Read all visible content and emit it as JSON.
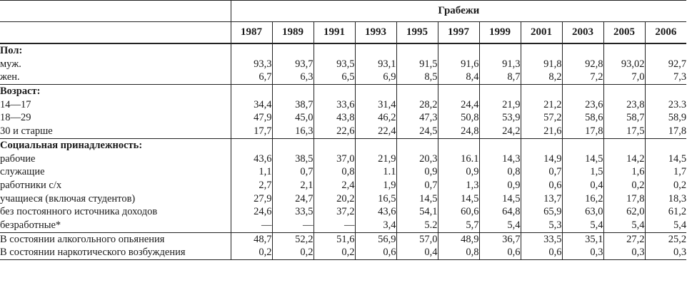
{
  "table": {
    "title": "Грабежи",
    "years": [
      "1987",
      "1989",
      "1991",
      "1993",
      "1995",
      "1997",
      "1999",
      "2001",
      "2003",
      "2005",
      "2006"
    ],
    "sections": [
      {
        "header": "Пол:",
        "rows": [
          {
            "label": "муж.",
            "values": [
              "93,3",
              "93,7",
              "93,5",
              "93,1",
              "91,5",
              "91,6",
              "91,3",
              "91,8",
              "92,8",
              "93,02",
              "92,7"
            ]
          },
          {
            "label": "жен.",
            "values": [
              "6,7",
              "6,3",
              "6,5",
              "6,9",
              "8,5",
              "8,4",
              "8,7",
              "8,2",
              "7,2",
              "7,0",
              "7,3"
            ]
          }
        ]
      },
      {
        "header": "Возраст:",
        "rows": [
          {
            "label": "14—17",
            "values": [
              "34,4",
              "38,7",
              "33,6",
              "31,4",
              "28,2",
              "24,4",
              "21,9",
              "21,2",
              "23,6",
              "23,8",
              "23.3"
            ]
          },
          {
            "label": "18—29",
            "values": [
              "47,9",
              "45,0",
              "43,8",
              "46,2",
              "47,3",
              "50,8",
              "53,9",
              "57,2",
              "58,6",
              "58,7",
              "58,9"
            ]
          },
          {
            "label": "30 и старше",
            "values": [
              "17,7",
              "16,3",
              "22,6",
              "22,4",
              "24,5",
              "24,8",
              "24,2",
              "21,6",
              "17,8",
              "17,5",
              "17,8"
            ]
          }
        ]
      },
      {
        "header": "Социальная принадлежность:",
        "rows": [
          {
            "label": "рабочие",
            "values": [
              "43,6",
              "38,5",
              "37,0",
              "21,9",
              "20,3",
              "16.1",
              "14,3",
              "14,9",
              "14,5",
              "14,2",
              "14,5"
            ]
          },
          {
            "label": "служащие",
            "values": [
              "1,1",
              "0,7",
              "0,8",
              "1.1",
              "0,9",
              "0,9",
              "0,8",
              "0,7",
              "1,5",
              "1,6",
              "1,7"
            ]
          },
          {
            "label": "работники с/х",
            "values": [
              "2,7",
              "2,1",
              "2,4",
              "1,9",
              "0,7",
              "1,3",
              "0,9",
              "0,6",
              "0,4",
              "0,2",
              "0,2"
            ]
          },
          {
            "label": "учащиеся (включая студентов)",
            "values": [
              "27,9",
              "24,7",
              "20,2",
              "16,5",
              "14,5",
              "14,5",
              "14,5",
              "13,7",
              "16,2",
              "17,8",
              "18,3"
            ]
          },
          {
            "label": "без постоянного источника доходов",
            "values": [
              "24,6",
              "33,5",
              "37,2",
              "43,6",
              "54,1",
              "60,6",
              "64,8",
              "65,9",
              "63,0",
              "62,0",
              "61,2"
            ]
          },
          {
            "label": "безработные*",
            "values": [
              "—",
              "—",
              "—",
              "3,4",
              "5.2",
              "5,7",
              "5,4",
              "5,3",
              "5,4",
              "5,4",
              "5,4"
            ]
          }
        ]
      },
      {
        "header": "",
        "rows": [
          {
            "label": "В состоянии алкогольного опьянения",
            "values": [
              "48,7",
              "52,2",
              "51,6",
              "56,9",
              "57,0",
              "48,9",
              "36,7",
              "33,5",
              "35,1",
              "27,2",
              "25,2"
            ]
          },
          {
            "label": "В состоянии наркотического возбуждения",
            "values": [
              "0,2",
              "0,2",
              "0,2",
              "0,6",
              "0,4",
              "0,8",
              "0,6",
              "0,6",
              "0,3",
              "0,3",
              "0,3"
            ]
          }
        ]
      }
    ]
  }
}
